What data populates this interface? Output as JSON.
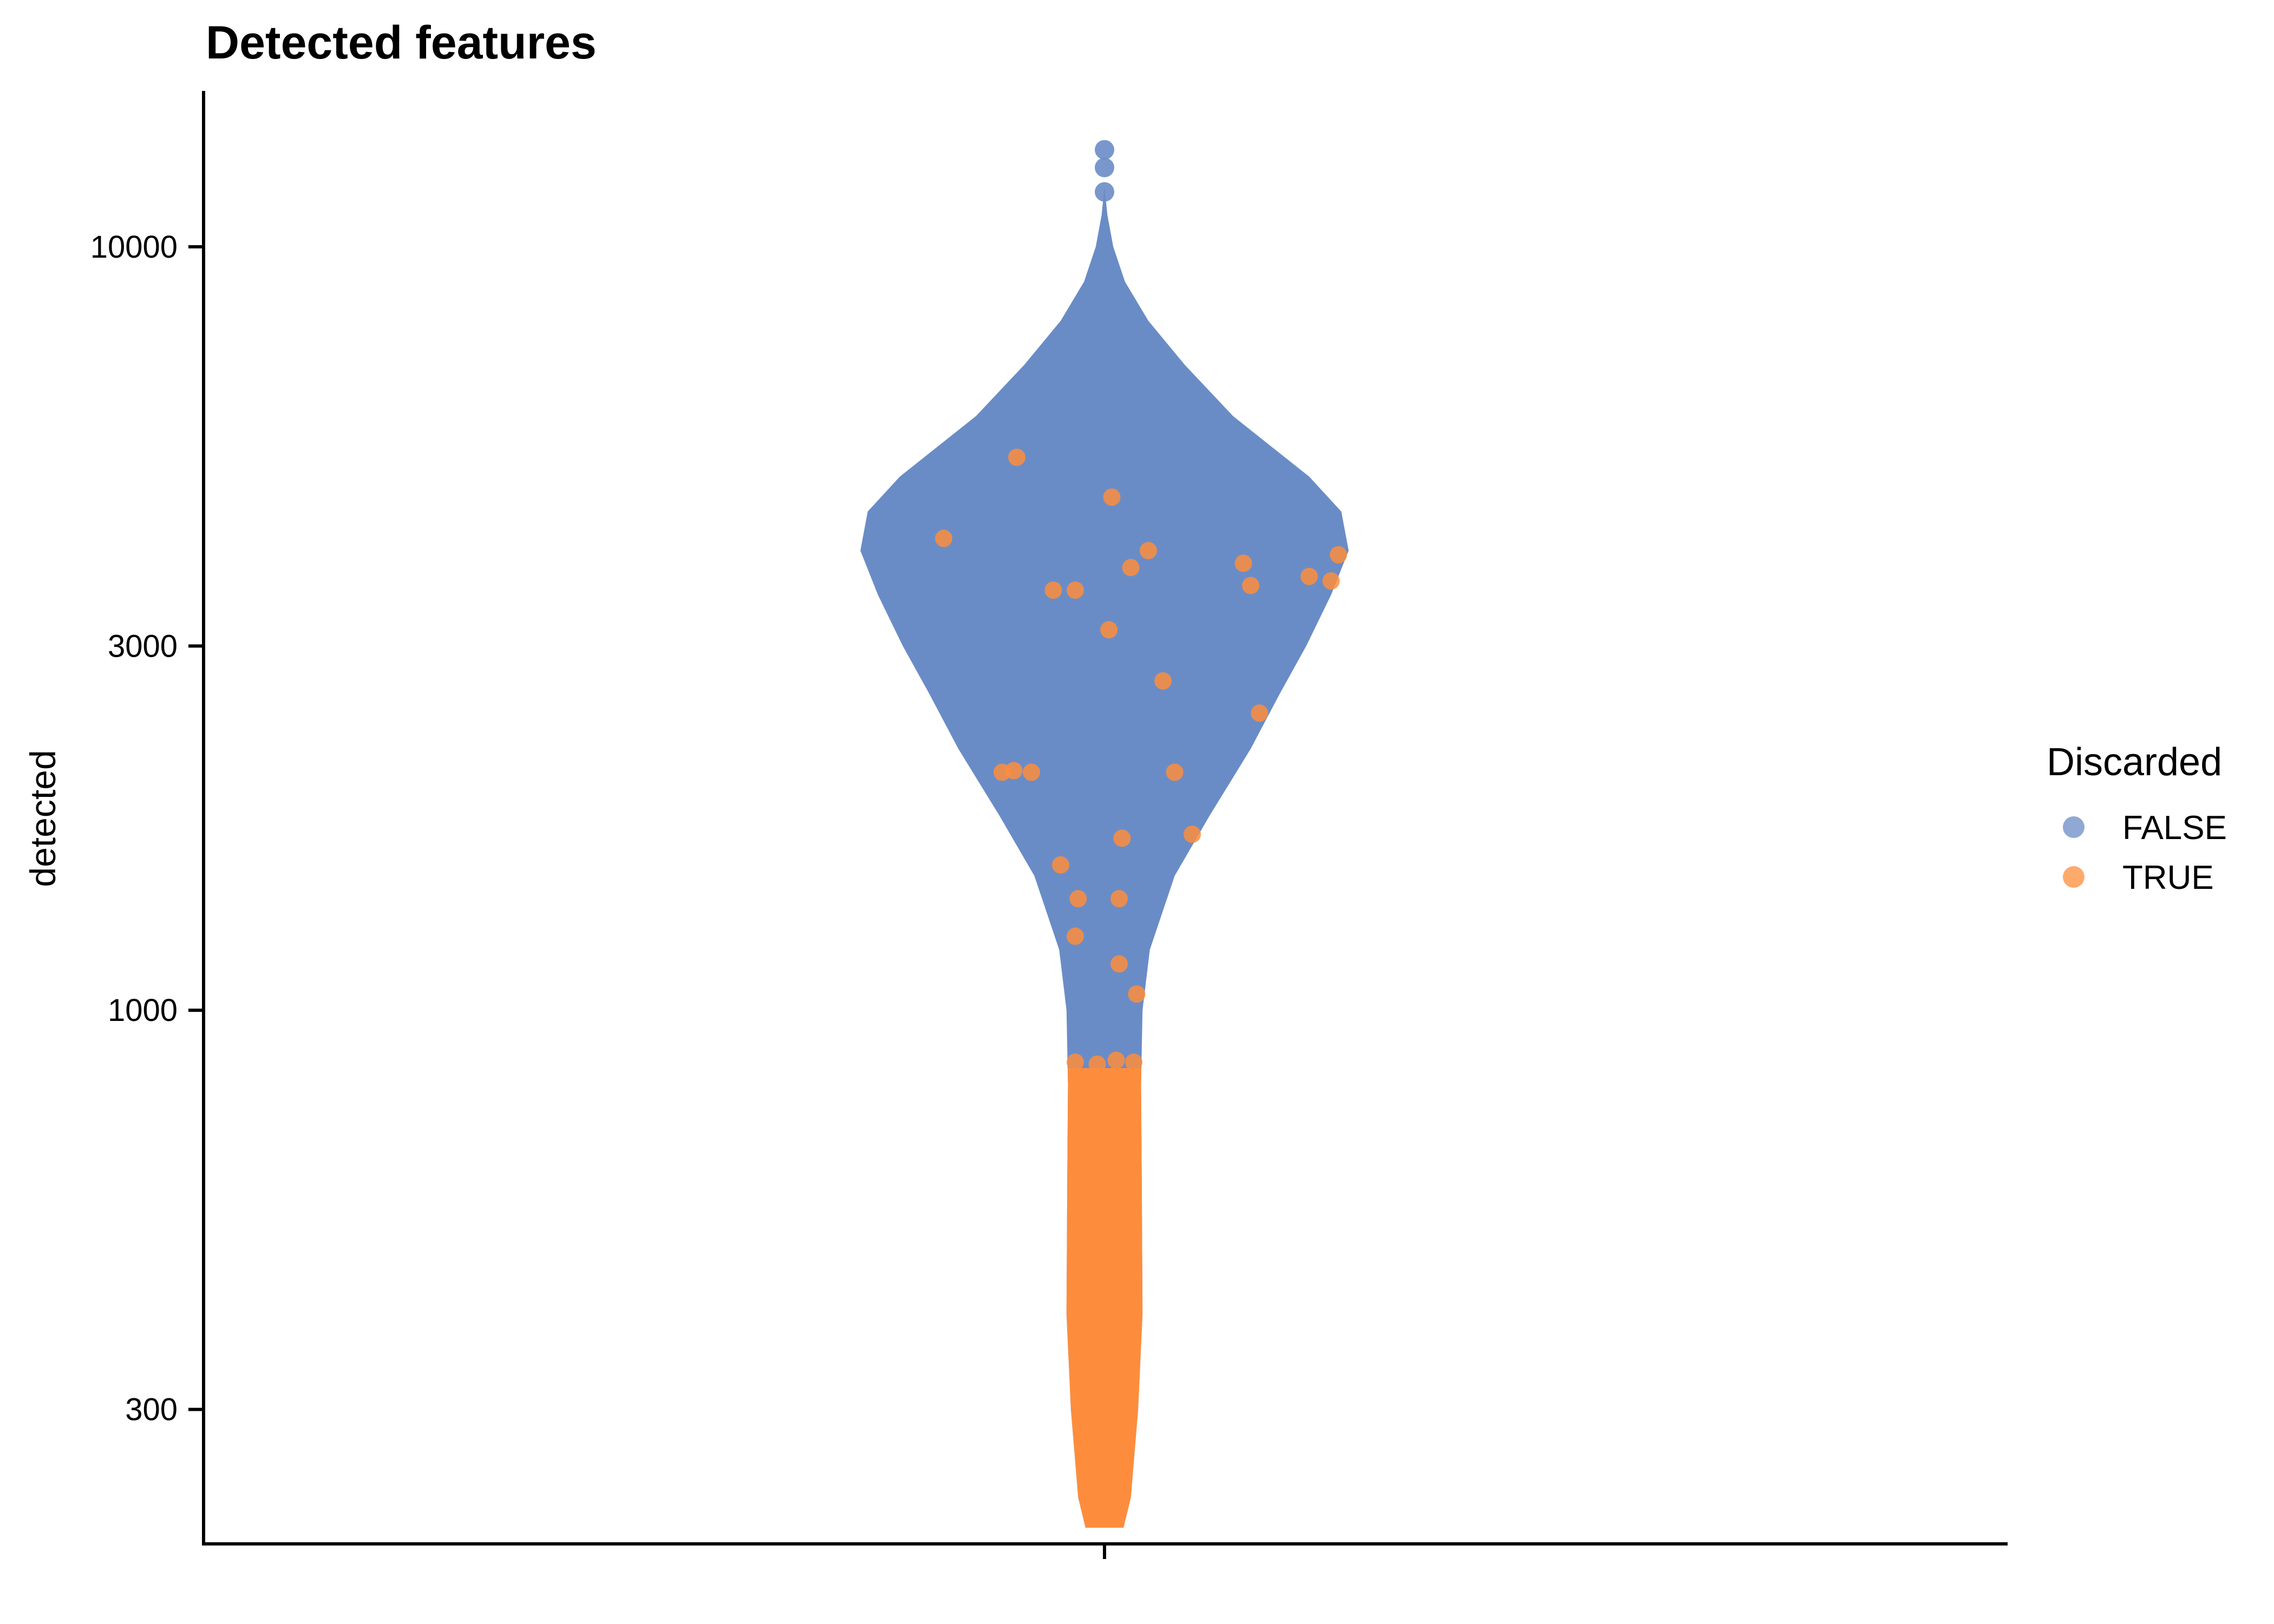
{
  "chart_data": {
    "type": "violin",
    "title": "Detected features",
    "xlabel": "",
    "ylabel": "detected",
    "y_scale": "log10",
    "ylim": [
      200,
      16000
    ],
    "y_ticks": [
      {
        "value": 300,
        "label": "300"
      },
      {
        "value": 1000,
        "label": "1000"
      },
      {
        "value": 3000,
        "label": "3000"
      },
      {
        "value": 10000,
        "label": "10000"
      }
    ],
    "grid": false,
    "legend": {
      "title": "Discarded",
      "placement": "right",
      "entries": [
        {
          "name": "FALSE",
          "color": "#6a8cc6"
        },
        {
          "name": "TRUE",
          "color": "#fd8d3c"
        }
      ]
    },
    "violin_outline": [
      {
        "y": 210,
        "half_width": 0.13
      },
      {
        "y": 230,
        "half_width": 0.18
      },
      {
        "y": 300,
        "half_width": 0.23
      },
      {
        "y": 400,
        "half_width": 0.26
      },
      {
        "y": 600,
        "half_width": 0.255
      },
      {
        "y": 800,
        "half_width": 0.25
      },
      {
        "y": 1000,
        "half_width": 0.26
      },
      {
        "y": 1200,
        "half_width": 0.31
      },
      {
        "y": 1500,
        "half_width": 0.48
      },
      {
        "y": 1800,
        "half_width": 0.72
      },
      {
        "y": 2200,
        "half_width": 1.0
      },
      {
        "y": 2600,
        "half_width": 1.2
      },
      {
        "y": 3000,
        "half_width": 1.38
      },
      {
        "y": 3500,
        "half_width": 1.55
      },
      {
        "y": 4000,
        "half_width": 1.67
      },
      {
        "y": 4500,
        "half_width": 1.62
      },
      {
        "y": 5000,
        "half_width": 1.4
      },
      {
        "y": 6000,
        "half_width": 0.88
      },
      {
        "y": 7000,
        "half_width": 0.55
      },
      {
        "y": 8000,
        "half_width": 0.3
      },
      {
        "y": 9000,
        "half_width": 0.14
      },
      {
        "y": 10000,
        "half_width": 0.06
      },
      {
        "y": 11000,
        "half_width": 0.02
      },
      {
        "y": 12000,
        "half_width": 0.0
      }
    ],
    "discard_threshold": 840,
    "points_true": [
      {
        "x": -0.6,
        "y": 5300
      },
      {
        "x": 0.05,
        "y": 4700
      },
      {
        "x": -1.1,
        "y": 4150
      },
      {
        "x": 0.3,
        "y": 4000
      },
      {
        "x": 1.6,
        "y": 3950
      },
      {
        "x": 1.55,
        "y": 3650
      },
      {
        "x": 0.18,
        "y": 3800
      },
      {
        "x": -0.35,
        "y": 3550
      },
      {
        "x": -0.2,
        "y": 3550
      },
      {
        "x": 0.03,
        "y": 3150
      },
      {
        "x": 1.0,
        "y": 3600
      },
      {
        "x": -0.5,
        "y": 2050
      },
      {
        "x": 0.6,
        "y": 1700
      },
      {
        "x": -0.3,
        "y": 1550
      },
      {
        "x": 1.06,
        "y": 2450
      },
      {
        "x": 0.48,
        "y": 2050
      },
      {
        "x": 0.12,
        "y": 1680
      },
      {
        "x": 0.1,
        "y": 1400
      },
      {
        "x": -0.2,
        "y": 1250
      },
      {
        "x": 0.1,
        "y": 1150
      },
      {
        "x": -0.18,
        "y": 1400
      },
      {
        "x": 1.4,
        "y": 3700
      },
      {
        "x": -0.7,
        "y": 2050
      },
      {
        "x": 0.22,
        "y": 1050
      },
      {
        "x": 0.95,
        "y": 3850
      },
      {
        "x": -0.62,
        "y": 2060
      },
      {
        "x": -0.05,
        "y": 850
      },
      {
        "x": 0.08,
        "y": 860
      },
      {
        "x": 0.2,
        "y": 855
      },
      {
        "x": -0.2,
        "y": 855
      },
      {
        "x": 0.4,
        "y": 2700
      }
    ],
    "points_false": [
      {
        "x": 0.0,
        "y": 13400
      },
      {
        "x": 0.0,
        "y": 12700
      },
      {
        "x": 0.0,
        "y": 11800
      }
    ]
  }
}
